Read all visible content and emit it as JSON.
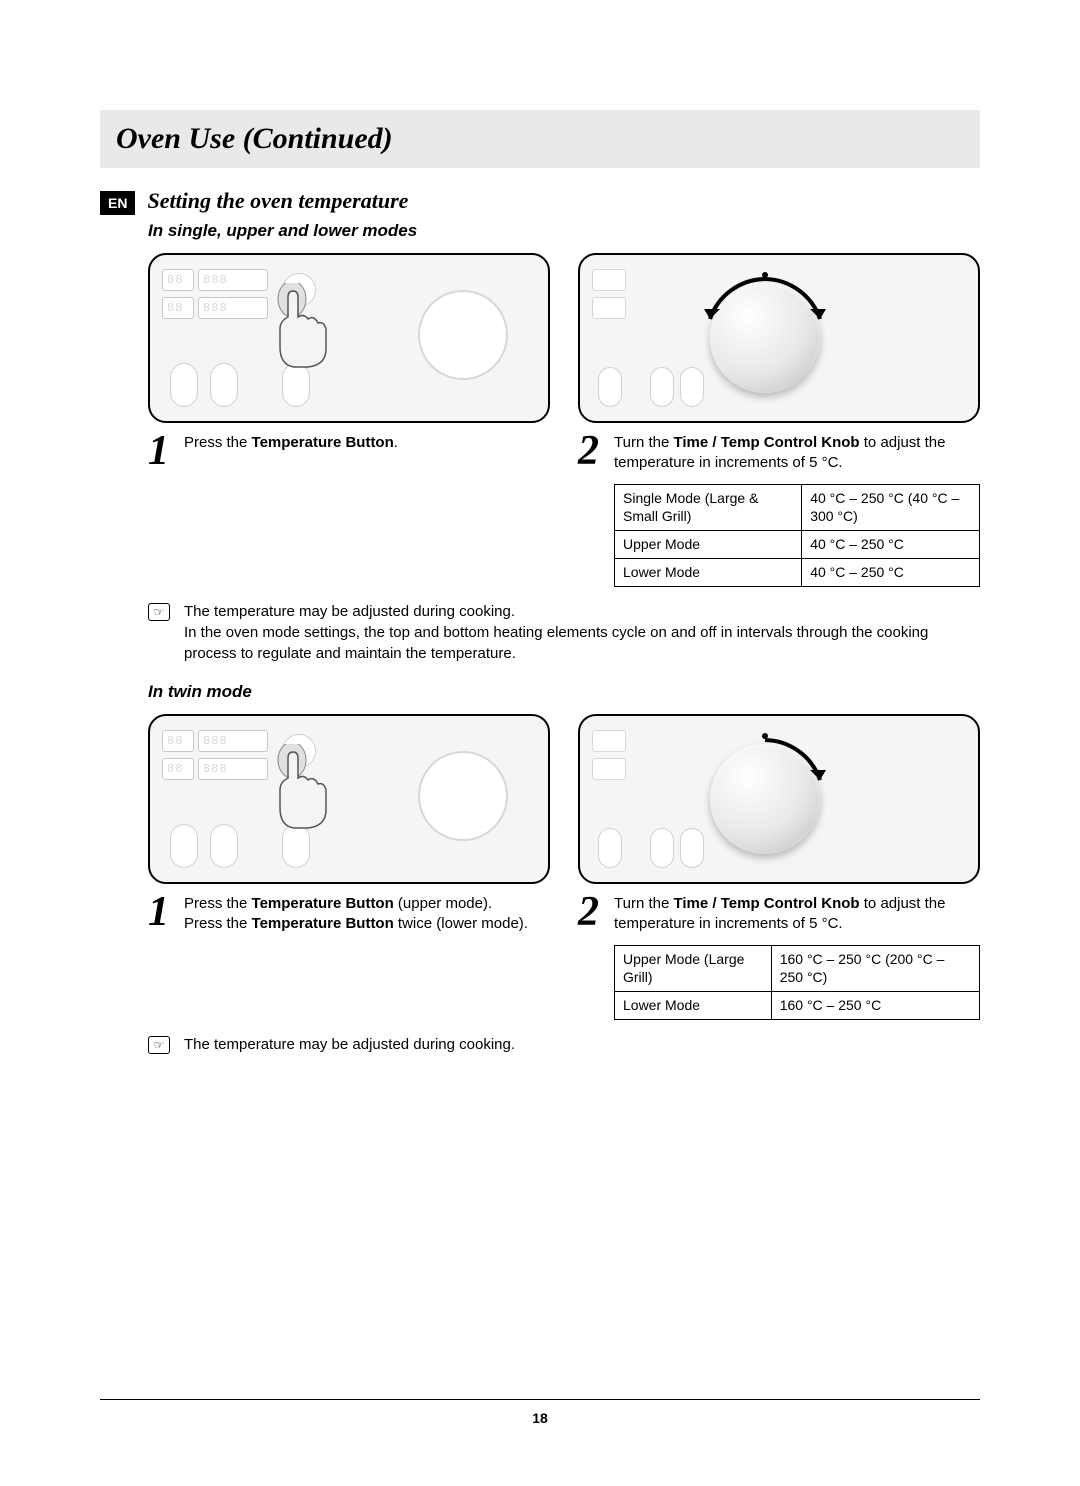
{
  "header": {
    "title": "Oven Use (Continued)"
  },
  "lang_badge": "EN",
  "section_title": "Setting the oven temperature",
  "section_a": {
    "subheading": "In single, upper and lower modes",
    "display_segments": {
      "a": "88",
      "b": "888",
      "c": "88",
      "d": "888"
    },
    "step1_num": "1",
    "step1_pre": "Press the ",
    "step1_bold": "Temperature Button",
    "step1_post": ".",
    "step2_num": "2",
    "step2_pre": "Turn the ",
    "step2_bold": "Time / Temp Control Knob",
    "step2_post": " to adjust the temperature in increments of 5 °C.",
    "table": {
      "rows": [
        {
          "mode": "Single Mode (Large & Small Grill)",
          "range": "40 °C – 250 °C (40 °C – 300 °C)"
        },
        {
          "mode": "Upper Mode",
          "range": "40 °C – 250 °C"
        },
        {
          "mode": "Lower Mode",
          "range": "40 °C – 250 °C"
        }
      ]
    },
    "note_line1": "The temperature may be adjusted during cooking.",
    "note_line2": "In the oven mode settings, the top and bottom heating elements cycle on and off in intervals through the cooking process to regulate and maintain the temperature."
  },
  "section_b": {
    "subheading": "In twin mode",
    "display_segments": {
      "a": "88",
      "b": "888",
      "c": "88",
      "d": "888"
    },
    "step1_num": "1",
    "step1_line1_pre": "Press the ",
    "step1_line1_bold": "Temperature Button",
    "step1_line1_post": " (upper mode).",
    "step1_line2_pre": "Press the ",
    "step1_line2_bold": "Temperature Button",
    "step1_line2_post": " twice (lower mode).",
    "step2_num": "2",
    "step2_pre": "Turn the ",
    "step2_bold": "Time / Temp Control Knob",
    "step2_post": " to adjust the temperature in increments of 5 °C.",
    "table": {
      "rows": [
        {
          "mode": "Upper Mode (Large Grill)",
          "range": "160 °C – 250 °C (200 °C – 250 °C)"
        },
        {
          "mode": "Lower Mode",
          "range": "160 °C – 250 °C"
        }
      ]
    },
    "note_line1": "The temperature may be adjusted during cooking."
  },
  "page_number": "18",
  "style": {
    "page_bg": "#ffffff",
    "titlebar_bg": "#e9e9e9",
    "text_color": "#000000",
    "badge_bg": "#000000",
    "badge_fg": "#ffffff",
    "panel_border": "#000000",
    "panel_bg": "#f5f5f5",
    "ghost_color": "#d8d8d8",
    "table_border": "#000000",
    "body_fontsize_pt": 11,
    "title_fontsize_pt": 22,
    "section_fontsize_pt": 16,
    "stepnum_fontsize_pt": 32
  }
}
